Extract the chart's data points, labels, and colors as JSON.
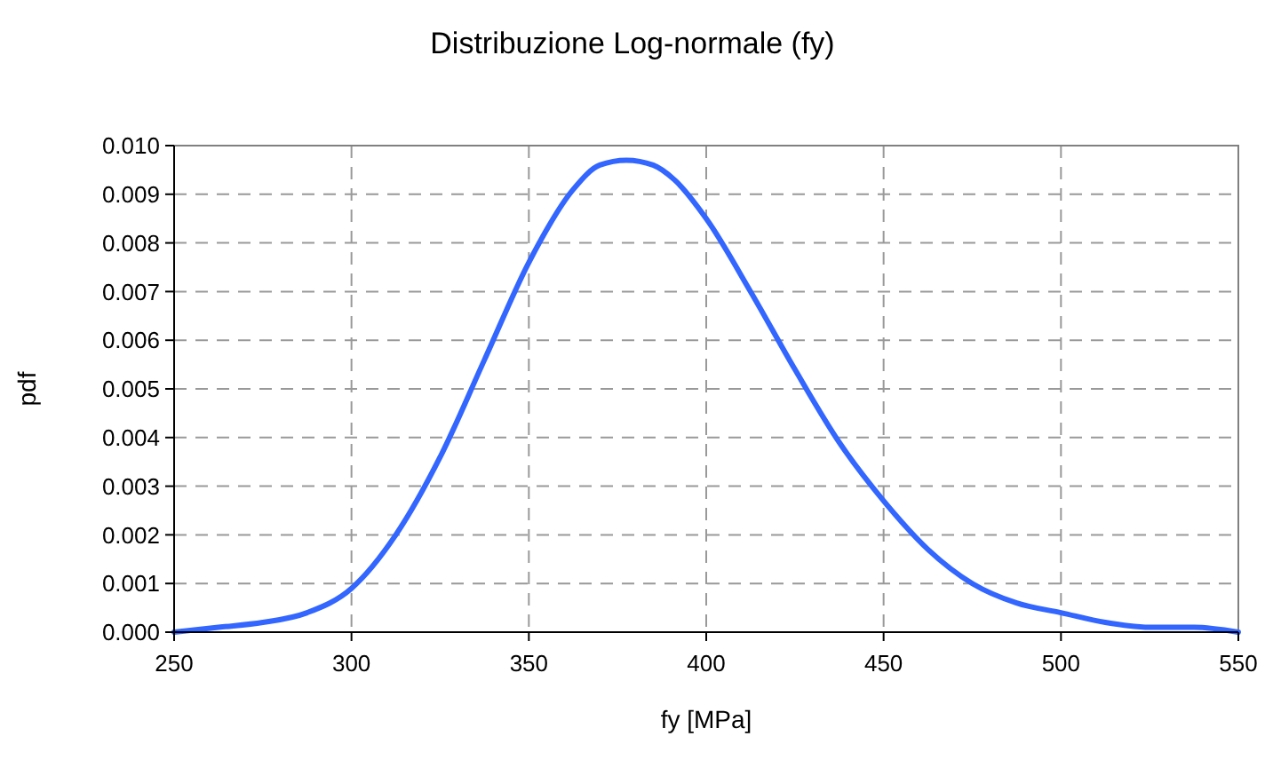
{
  "chart_data": {
    "type": "line",
    "title": "Distribuzione Log-normale (fy)",
    "xlabel": "fy [MPa]",
    "ylabel": "pdf",
    "x": [
      250,
      262.5,
      275,
      287.5,
      300,
      312.5,
      325,
      337.5,
      350,
      362.5,
      370,
      377.5,
      385,
      391,
      400,
      412.5,
      425,
      437.5,
      450,
      462.5,
      475,
      487.5,
      500,
      512.5,
      525,
      537.5,
      550
    ],
    "series": [
      {
        "color": "#3366ff",
        "values": [
          0.0,
          0.0001,
          0.0002,
          0.0004,
          0.0009,
          0.002,
          0.0036,
          0.0056,
          0.0076,
          0.0091,
          0.0096,
          0.0097,
          0.0096,
          0.0093,
          0.0085,
          0.007,
          0.0054,
          0.0039,
          0.0027,
          0.0017,
          0.001,
          0.0006,
          0.0004,
          0.0002,
          0.0001,
          0.0001,
          0.0
        ]
      }
    ],
    "xlim": [
      250,
      550
    ],
    "ylim": [
      0,
      0.01
    ],
    "xticks": [
      250,
      300,
      350,
      400,
      450,
      500,
      550
    ],
    "yticks": [
      {
        "value": 0,
        "label": "0.000"
      },
      {
        "value": 0.001,
        "label": "0.001"
      },
      {
        "value": 0.002,
        "label": "0.002"
      },
      {
        "value": 0.003,
        "label": "0.003"
      },
      {
        "value": 0.004,
        "label": "0.004"
      },
      {
        "value": 0.005,
        "label": "0.005"
      },
      {
        "value": 0.006,
        "label": "0.006"
      },
      {
        "value": 0.007,
        "label": "0.007"
      },
      {
        "value": 0.008,
        "label": "0.008"
      },
      {
        "value": 0.009,
        "label": "0.009"
      },
      {
        "value": 0.01,
        "label": "0.010"
      }
    ],
    "grid": true,
    "marker": "none",
    "line_style": "solid"
  }
}
